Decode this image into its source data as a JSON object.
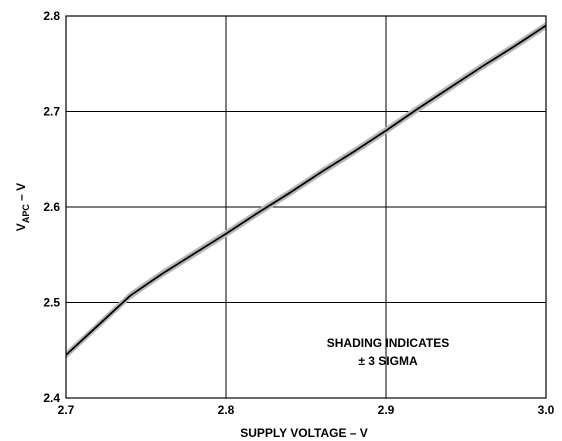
{
  "chart_data": {
    "type": "line",
    "xlabel": "SUPPLY VOLTAGE – V",
    "ylabel": {
      "main": "V",
      "sub": "APC",
      "suffix": " – V"
    },
    "xlim": [
      2.7,
      3.0
    ],
    "ylim": [
      2.4,
      2.8
    ],
    "x_ticks": [
      "2.7",
      "2.8",
      "2.9",
      "3.0"
    ],
    "y_ticks": [
      "2.4",
      "2.5",
      "2.6",
      "2.7",
      "2.8"
    ],
    "grid": true,
    "annotation": [
      "SHADING INDICATES",
      "± 3 SIGMA"
    ],
    "series": [
      {
        "x": [
          2.7,
          2.72,
          2.74,
          2.76,
          2.78,
          2.8,
          2.82,
          2.84,
          2.86,
          2.88,
          2.9,
          2.92,
          2.94,
          2.96,
          2.98,
          3.0
        ],
        "y": [
          2.445,
          2.476,
          2.507,
          2.53,
          2.551,
          2.572,
          2.594,
          2.615,
          2.637,
          2.658,
          2.68,
          2.703,
          2.725,
          2.747,
          2.768,
          2.79
        ],
        "band": 0.004,
        "color": "#000000",
        "band_color": "#b8b8b8"
      }
    ]
  }
}
